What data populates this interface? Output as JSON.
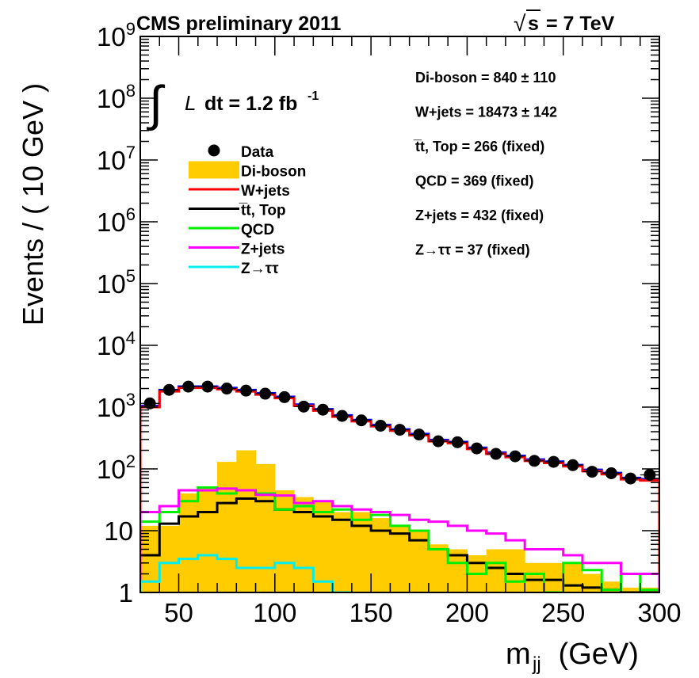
{
  "chart_data": {
    "type": "histogram",
    "header_left": "CMS preliminary 2011",
    "header_right_prefix": "s",
    "header_right_suffix": " = 7 TeV",
    "lumi": {
      "symbol": "L",
      "text": "dt = 1.2 fb",
      "superscript": "-1"
    },
    "ylabel": "Events / ( 10 GeV )",
    "xlabel_main": "m",
    "xlabel_sub": "jj",
    "xlabel_unit": " (GeV)",
    "xlim": [
      30,
      300
    ],
    "ylim": [
      1,
      1000000000
    ],
    "yscale": "log",
    "x_ticks": [
      50,
      100,
      150,
      200,
      250,
      300
    ],
    "x_tick_labels": [
      "50",
      "100",
      "150",
      "200",
      "250",
      "300"
    ],
    "y_ticks": [
      {
        "value": 1,
        "base": "1",
        "exp": ""
      },
      {
        "value": 10,
        "base": "10",
        "exp": ""
      },
      {
        "value": 100,
        "base": "10",
        "exp": "2"
      },
      {
        "value": 1000,
        "base": "10",
        "exp": "3"
      },
      {
        "value": 10000,
        "base": "10",
        "exp": "4"
      },
      {
        "value": 100000,
        "base": "10",
        "exp": "5"
      },
      {
        "value": 1000000,
        "base": "10",
        "exp": "6"
      },
      {
        "value": 10000000,
        "base": "10",
        "exp": "7"
      },
      {
        "value": 100000000,
        "base": "10",
        "exp": "8"
      },
      {
        "value": 1000000000,
        "base": "10",
        "exp": "9"
      }
    ],
    "bin_edges": [
      30,
      40,
      50,
      60,
      70,
      80,
      90,
      100,
      110,
      120,
      130,
      140,
      150,
      160,
      170,
      180,
      190,
      200,
      210,
      220,
      230,
      240,
      250,
      260,
      270,
      280,
      290,
      300
    ],
    "data_points": {
      "name": "Data",
      "x": [
        35,
        45,
        55,
        65,
        75,
        85,
        95,
        105,
        115,
        125,
        135,
        145,
        155,
        165,
        175,
        185,
        195,
        205,
        215,
        225,
        235,
        245,
        255,
        265,
        275,
        285,
        295
      ],
      "y": [
        1150,
        1900,
        2150,
        2150,
        2000,
        1850,
        1650,
        1450,
        1020,
        910,
        720,
        610,
        500,
        430,
        360,
        280,
        270,
        215,
        175,
        160,
        135,
        130,
        115,
        90,
        85,
        70,
        80
      ]
    },
    "series": [
      {
        "name": "Di-boson",
        "style": "fill",
        "color": "#ffcc00",
        "values": [
          12,
          12,
          40,
          50,
          130,
          200,
          120,
          45,
          35,
          30,
          20,
          20,
          16,
          12,
          10,
          6,
          5,
          4,
          5,
          5,
          3,
          3,
          3,
          2,
          1.5,
          1.2,
          1.2
        ]
      },
      {
        "name": "W+jets",
        "style": "line",
        "color": "#ff0000",
        "values": [
          1000,
          1800,
          2050,
          2050,
          1950,
          1800,
          1600,
          1400,
          1050,
          880,
          700,
          590,
          490,
          415,
          350,
          280,
          260,
          210,
          175,
          155,
          135,
          125,
          110,
          92,
          82,
          68,
          65
        ]
      },
      {
        "name": "t̅t, Top",
        "style": "line",
        "color": "#000000",
        "values": [
          4,
          13,
          17,
          20,
          28,
          33,
          30,
          22,
          20,
          17,
          15,
          12,
          10,
          9,
          7,
          5,
          4,
          3,
          2.5,
          2,
          1.6,
          1.6,
          1.3,
          1.2,
          1.1,
          1,
          1
        ]
      },
      {
        "name": "QCD",
        "style": "line",
        "color": "#00ee00",
        "values": [
          14,
          20,
          30,
          50,
          40,
          45,
          40,
          22,
          25,
          20,
          22,
          15,
          18,
          12,
          10,
          5,
          3,
          2,
          3,
          1.5,
          2,
          1,
          3,
          2.3,
          1.1,
          2,
          1.1
        ]
      },
      {
        "name": "Z+jets",
        "style": "line",
        "color": "#ff00ff",
        "values": [
          20,
          25,
          45,
          45,
          48,
          45,
          38,
          37,
          28,
          30,
          25,
          22,
          20,
          18,
          15,
          14,
          12,
          10,
          9,
          7,
          5,
          5,
          4,
          3,
          3,
          2,
          2
        ]
      },
      {
        "name": "Z→ττ",
        "style": "line",
        "color": "#00eeee",
        "values": [
          1.5,
          3,
          3.5,
          4,
          3.5,
          2.5,
          2.5,
          3,
          2.5,
          1.5,
          1,
          0.8,
          0.8,
          0.8,
          0.8,
          0.8,
          0.8,
          0.8,
          0.8,
          0.8,
          0.8,
          0.8,
          0.8,
          0.8,
          0.8,
          0.8,
          0.8
        ]
      }
    ],
    "legend_placement": "upper-left",
    "legend": [
      {
        "label": "Data",
        "style": "marker",
        "color": "#000000"
      },
      {
        "label": "Di-boson",
        "style": "fill",
        "color": "#ffcc00"
      },
      {
        "label": "W+jets",
        "style": "line",
        "color": "#ff0000"
      },
      {
        "label": "t̅t, Top",
        "style": "line",
        "color": "#000000"
      },
      {
        "label": "QCD",
        "style": "line",
        "color": "#00ee00"
      },
      {
        "label": "Z+jets",
        "style": "line",
        "color": "#ff00ff"
      },
      {
        "label": "Z→ττ",
        "style": "line",
        "color": "#00eeee"
      }
    ],
    "fit_results": [
      "Di-boson = 840 ± 110",
      "W+jets = 18473 ± 142",
      "t̅t, Top = 266 (fixed)",
      "QCD = 369 (fixed)",
      "Z+jets = 432 (fixed)",
      "Z→ττ = 37 (fixed)"
    ]
  }
}
